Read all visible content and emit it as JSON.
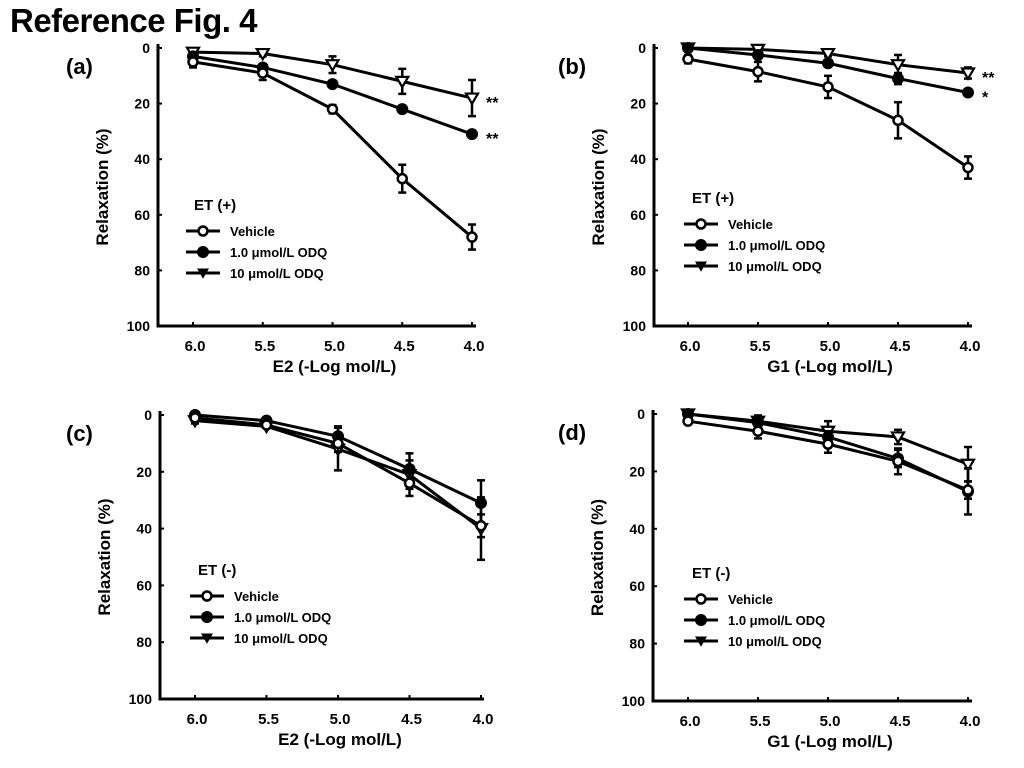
{
  "figure_title": "Reference Fig. 4",
  "chart_data": [
    {
      "panel_label": "(a)",
      "type": "line",
      "title": "",
      "xlabel": "E2 (-Log mol/L)",
      "ylabel": "Relaxation (%)",
      "x": [
        6.0,
        5.5,
        5.0,
        4.5,
        4.0
      ],
      "x_tick_labels": [
        "6.0",
        "5.5",
        "5.0",
        "4.5",
        "4.0"
      ],
      "ylim": [
        0,
        100
      ],
      "y_inverted": true,
      "y_ticks": [
        0,
        20,
        40,
        60,
        80,
        100
      ],
      "grid": false,
      "legend_title": "ET (+)",
      "legend_placement": "center-left",
      "series": [
        {
          "name": "Vehicle",
          "marker": "open-circle",
          "values": [
            5,
            9,
            22,
            47,
            68
          ],
          "errors": [
            2,
            2.5,
            1.5,
            5,
            4.5
          ]
        },
        {
          "name": "1.0 μmol/L ODQ",
          "marker": "filled-circle",
          "values": [
            3,
            7,
            13,
            22,
            31
          ],
          "errors": [
            0.5,
            1,
            0.5,
            0.5,
            0.5
          ]
        },
        {
          "name": "10 μmol/L ODQ",
          "marker": "open-triangle-down",
          "legend_marker": "filled-triangle-down",
          "values": [
            1.5,
            2,
            6,
            12,
            18
          ],
          "errors": [
            1,
            1,
            3,
            4.5,
            6.5
          ]
        }
      ],
      "annotations": [
        {
          "series": "10 μmol/L ODQ",
          "x": 4.0,
          "text": "**"
        },
        {
          "series": "1.0 μmol/L ODQ",
          "x": 4.0,
          "text": "**"
        }
      ]
    },
    {
      "panel_label": "(b)",
      "type": "line",
      "title": "",
      "xlabel": "G1 (-Log mol/L)",
      "ylabel": "Relaxation (%)",
      "x": [
        6.0,
        5.5,
        5.0,
        4.5,
        4.0
      ],
      "x_tick_labels": [
        "6.0",
        "5.5",
        "5.0",
        "4.5",
        "4.0"
      ],
      "ylim": [
        0,
        100
      ],
      "y_inverted": true,
      "y_ticks": [
        0,
        20,
        40,
        60,
        80,
        100
      ],
      "grid": false,
      "legend_title": "ET (+)",
      "legend_placement": "center-left",
      "series": [
        {
          "name": "Vehicle",
          "marker": "open-circle",
          "values": [
            4,
            8.5,
            14,
            26,
            43
          ],
          "errors": [
            1.5,
            3.5,
            4,
            6.5,
            4
          ]
        },
        {
          "name": "1.0 μmol/L ODQ",
          "marker": "filled-circle",
          "values": [
            0,
            2.5,
            5.5,
            11,
            16
          ],
          "errors": [
            0.5,
            1,
            1,
            2,
            0.5
          ]
        },
        {
          "name": "10 μmol/L ODQ",
          "marker": "open-triangle-down",
          "legend_marker": "filled-triangle-down",
          "values": [
            0,
            0.5,
            2,
            6,
            9
          ],
          "errors": [
            0.5,
            0.5,
            1,
            3.5,
            2
          ]
        }
      ],
      "annotations": [
        {
          "series": "10 μmol/L ODQ",
          "x": 4.0,
          "text": "**"
        },
        {
          "series": "1.0 μmol/L ODQ",
          "x": 4.0,
          "text": "*"
        }
      ]
    },
    {
      "panel_label": "(c)",
      "type": "line",
      "title": "",
      "xlabel": "E2 (-Log mol/L)",
      "ylabel": "Relaxation (%)",
      "x": [
        6.0,
        5.5,
        5.0,
        4.5,
        4.0
      ],
      "x_tick_labels": [
        "6.0",
        "5.5",
        "5.0",
        "4.5",
        "4.0"
      ],
      "ylim": [
        0,
        100
      ],
      "y_inverted": true,
      "y_ticks": [
        0,
        20,
        40,
        60,
        80,
        100
      ],
      "grid": false,
      "legend_title": "ET (-)",
      "legend_placement": "center-left",
      "series": [
        {
          "name": "Vehicle",
          "marker": "open-circle",
          "values": [
            1,
            3.5,
            10,
            24,
            39
          ],
          "errors": [
            0.5,
            0.5,
            3,
            4.5,
            4
          ]
        },
        {
          "name": "1.0 μmol/L ODQ",
          "marker": "filled-circle",
          "values": [
            0,
            2,
            7.5,
            19,
            31
          ],
          "errors": [
            0.5,
            0.5,
            3.5,
            5.5,
            8
          ]
        },
        {
          "name": "10 μmol/L ODQ",
          "marker": "open-triangle-down",
          "legend_marker": "filled-triangle-down",
          "values": [
            2,
            4,
            12,
            21,
            40
          ],
          "errors": [
            1,
            0.5,
            7.5,
            5,
            11
          ]
        }
      ],
      "annotations": []
    },
    {
      "panel_label": "(d)",
      "type": "line",
      "title": "",
      "xlabel": "G1 (-Log mol/L)",
      "ylabel": "Relaxation (%)",
      "x": [
        6.0,
        5.5,
        5.0,
        4.5,
        4.0
      ],
      "x_tick_labels": [
        "6.0",
        "5.5",
        "5.0",
        "4.5",
        "4.0"
      ],
      "ylim": [
        0,
        100
      ],
      "y_inverted": true,
      "y_ticks": [
        0,
        20,
        40,
        60,
        80,
        100
      ],
      "grid": false,
      "legend_title": "ET (-)",
      "legend_placement": "center-left",
      "series": [
        {
          "name": "Vehicle",
          "marker": "open-circle",
          "values": [
            2.5,
            6,
            10.5,
            16.5,
            26.5
          ],
          "errors": [
            0.5,
            2.5,
            3,
            4.5,
            3
          ]
        },
        {
          "name": "1.0 μmol/L ODQ",
          "marker": "filled-circle",
          "values": [
            0,
            3,
            8,
            15.5,
            27
          ],
          "errors": [
            0.5,
            1,
            2,
            3,
            8
          ]
        },
        {
          "name": "10 μmol/L ODQ",
          "marker": "open-triangle-down",
          "legend_marker": "filled-triangle-down",
          "values": [
            0,
            2.5,
            6,
            8,
            17.5
          ],
          "errors": [
            0.5,
            2,
            3.5,
            2.5,
            6
          ]
        }
      ],
      "annotations": []
    }
  ]
}
